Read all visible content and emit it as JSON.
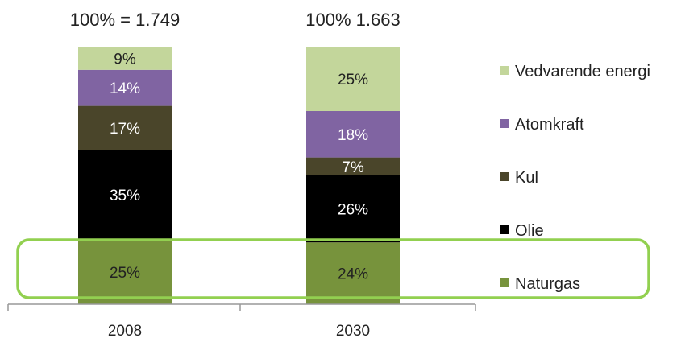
{
  "chart_data": {
    "type": "bar",
    "stacked": true,
    "percent": true,
    "categories": [
      "2008",
      "2030"
    ],
    "totals": [
      "100% = 1.749",
      "100% 1.663"
    ],
    "series": [
      {
        "name": "Naturgas",
        "values": [
          25,
          24
        ],
        "labels": [
          "25%",
          "24%"
        ],
        "color": "#77933c",
        "label_color": "#222222"
      },
      {
        "name": "Olie",
        "values": [
          35,
          26
        ],
        "labels": [
          "35%",
          "26%"
        ],
        "color": "#000000",
        "label_color": "#ffffff"
      },
      {
        "name": "Kul",
        "values": [
          17,
          7
        ],
        "labels": [
          "17%",
          "7%"
        ],
        "color": "#4a452a",
        "label_color": "#ffffff"
      },
      {
        "name": "Atomkraft",
        "values": [
          14,
          18
        ],
        "labels": [
          "14%",
          "18%"
        ],
        "color": "#8064a2",
        "label_color": "#ffffff"
      },
      {
        "name": "Vedvarende energi",
        "values": [
          9,
          25
        ],
        "labels": [
          "9%",
          "25%"
        ],
        "color": "#c3d69b",
        "label_color": "#222222"
      }
    ],
    "ylim": [
      0,
      100
    ],
    "legend_position": "right",
    "legend_order": [
      "Vedvarende energi",
      "Atomkraft",
      "Kul",
      "Olie",
      "Naturgas"
    ],
    "highlight": {
      "series": "Naturgas",
      "color": "#92d050"
    }
  }
}
